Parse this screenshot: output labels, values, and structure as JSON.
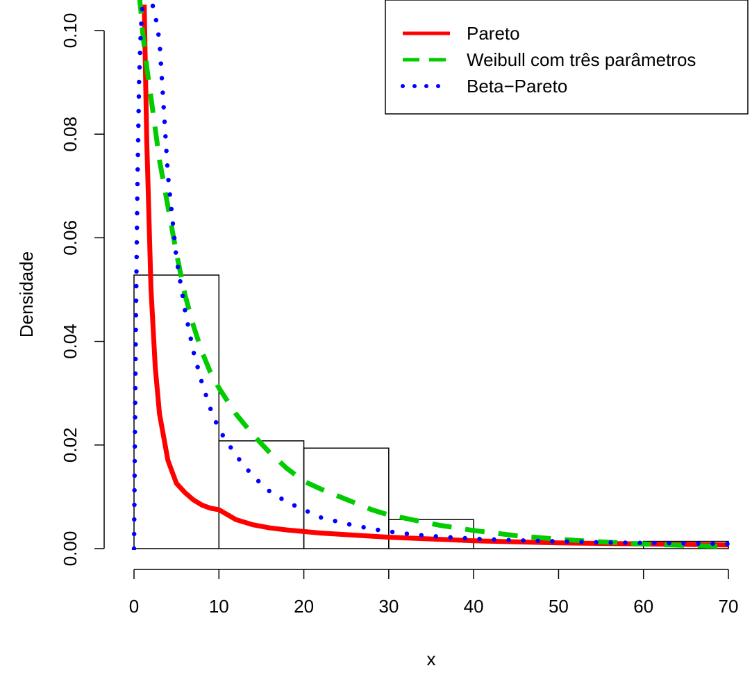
{
  "chart_data": {
    "type": "histogram",
    "title": "",
    "xlabel": "x",
    "ylabel": "Densidade",
    "xlim": [
      0,
      70
    ],
    "ylim": [
      0,
      0.1
    ],
    "x_ticks": [
      {
        "value": 0,
        "label": "0"
      },
      {
        "value": 10,
        "label": "10"
      },
      {
        "value": 20,
        "label": "20"
      },
      {
        "value": 30,
        "label": "30"
      },
      {
        "value": 40,
        "label": "40"
      },
      {
        "value": 50,
        "label": "50"
      },
      {
        "value": 60,
        "label": "60"
      },
      {
        "value": 70,
        "label": "70"
      }
    ],
    "y_ticks": [
      {
        "value": 0,
        "label": "0.00"
      },
      {
        "value": 0.02,
        "label": "0.02"
      },
      {
        "value": 0.04,
        "label": "0.04"
      },
      {
        "value": 0.06,
        "label": "0.06"
      },
      {
        "value": 0.08,
        "label": "0.08"
      },
      {
        "value": 0.1,
        "label": "0.10"
      }
    ],
    "histogram": {
      "bins": [
        {
          "from": 0,
          "to": 10,
          "density": 0.0528
        },
        {
          "from": 10,
          "to": 20,
          "density": 0.0208
        },
        {
          "from": 20,
          "to": 30,
          "density": 0.0194
        },
        {
          "from": 30,
          "to": 40,
          "density": 0.0056
        },
        {
          "from": 40,
          "to": 50,
          "density": 0.0
        },
        {
          "from": 50,
          "to": 60,
          "density": 0.0
        },
        {
          "from": 60,
          "to": 70,
          "density": 0.0014
        }
      ],
      "color": "#000000"
    },
    "x": [
      0,
      0.2,
      0.4,
      0.6,
      0.8,
      1,
      1.2,
      1.5,
      2,
      2.5,
      3,
      4,
      5,
      6,
      7,
      8,
      9,
      10,
      12,
      14,
      16,
      18,
      20,
      22,
      25,
      28,
      30,
      33,
      36,
      40,
      45,
      50,
      55,
      60,
      65,
      70
    ],
    "series": [
      {
        "name": "Pareto",
        "style": "solid",
        "color": "#ff0000",
        "values": [
          null,
          null,
          null,
          null,
          null,
          null,
          0.105,
          0.079,
          0.05,
          0.035,
          0.026,
          0.017,
          0.0126,
          0.0108,
          0.0094,
          0.0084,
          0.0078,
          0.0075,
          0.0056,
          0.0046,
          0.004,
          0.0036,
          0.0033,
          0.003,
          0.0027,
          0.0024,
          0.0022,
          0.002,
          0.0018,
          0.0015,
          0.0013,
          0.0011,
          0.001,
          0.0009,
          0.0008,
          0.0007
        ]
      },
      {
        "name": "Weibull com três parâmetros",
        "style": "dashed",
        "color": "#00cc00",
        "values": [
          null,
          null,
          null,
          0.107,
          0.104,
          0.1,
          0.097,
          0.093,
          0.087,
          0.081,
          0.075,
          0.066,
          0.057,
          0.049,
          0.043,
          0.038,
          0.034,
          0.031,
          0.026,
          0.022,
          0.0185,
          0.0155,
          0.013,
          0.0115,
          0.0095,
          0.0075,
          0.0065,
          0.0055,
          0.0045,
          0.0035,
          0.0025,
          0.0018,
          0.0013,
          0.0009,
          0.0006,
          0.0004
        ]
      },
      {
        "name": "Beta−Pareto",
        "style": "dotted",
        "color": "#0000ff",
        "values": [
          0.0,
          0.04,
          0.07,
          0.09,
          0.1,
          0.105,
          0.106,
          0.107,
          0.106,
          0.103,
          0.098,
          0.072,
          0.056,
          0.046,
          0.038,
          0.032,
          0.027,
          0.023,
          0.018,
          0.014,
          0.011,
          0.009,
          0.0075,
          0.006,
          0.0048,
          0.0038,
          0.0033,
          0.0027,
          0.0023,
          0.0019,
          0.0016,
          0.0014,
          0.0012,
          0.0011,
          0.001,
          0.0009
        ]
      }
    ],
    "legend": {
      "position": "top-right",
      "entries": [
        {
          "label": "Pareto",
          "style": "solid",
          "color": "#ff0000"
        },
        {
          "label": "Weibull com três parâmetros",
          "style": "dashed",
          "color": "#00cc00"
        },
        {
          "label": "Beta−Pareto",
          "style": "dotted",
          "color": "#0000ff"
        }
      ]
    },
    "grid": false
  }
}
